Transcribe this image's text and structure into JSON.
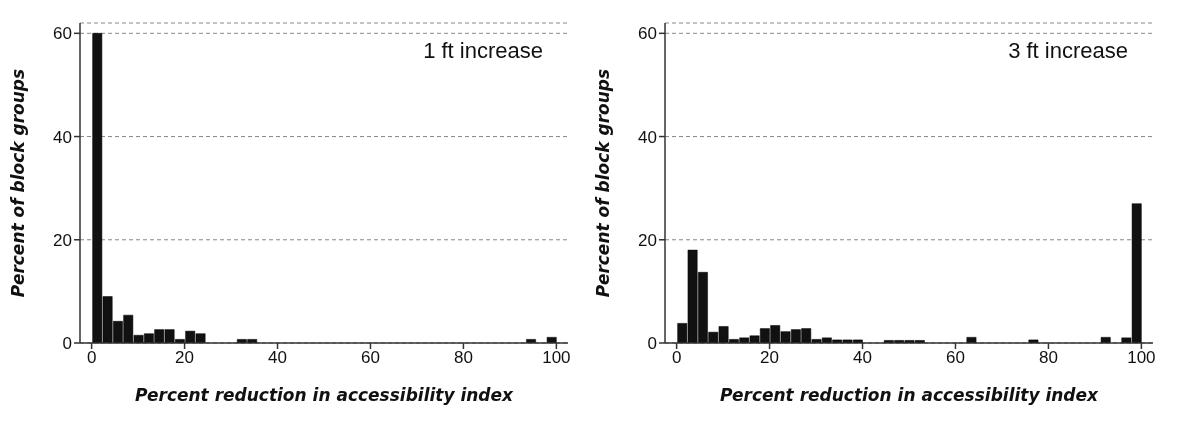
{
  "chart_data": [
    {
      "type": "histogram",
      "xlabel": "Percent reduction in accessibility index",
      "ylabel": "Percent of block groups",
      "annotations": [
        "1 ft increase"
      ],
      "bins": [
        0,
        2.222,
        4.444,
        6.667,
        8.889,
        11.111,
        13.333,
        15.556,
        17.778,
        20,
        22.222,
        24.444,
        26.667,
        28.889,
        31.111,
        33.333,
        35.556,
        37.778,
        40,
        42.222,
        44.444,
        46.667,
        48.889,
        51.111,
        53.333,
        55.556,
        57.778,
        60,
        62.222,
        64.444,
        66.667,
        68.889,
        71.111,
        73.333,
        75.556,
        77.778,
        80,
        82.222,
        84.444,
        86.667,
        88.889,
        91.111,
        93.333,
        95.556,
        97.778,
        100
      ],
      "values": [
        60,
        9,
        4.2,
        5.4,
        1.5,
        1.8,
        2.6,
        2.6,
        0.7,
        2.3,
        1.8,
        0,
        0,
        0,
        0.7,
        0.7,
        0,
        0,
        0,
        0,
        0,
        0,
        0,
        0,
        0,
        0,
        0,
        0,
        0,
        0,
        0,
        0,
        0,
        0,
        0,
        0,
        0,
        0,
        0,
        0,
        0,
        0,
        0.7,
        0,
        1.1
      ],
      "color": "#111111",
      "xlim": [
        -2.5,
        102.5
      ],
      "xticks": [
        0,
        20,
        40,
        60,
        80,
        100
      ],
      "ylim": [
        0,
        62
      ],
      "yticks": [
        0,
        20,
        40,
        60
      ],
      "grid": "y"
    },
    {
      "type": "histogram",
      "xlabel": "Percent reduction in accessibility index",
      "ylabel": "Percent of block groups",
      "annotations": [
        "3 ft increase"
      ],
      "bins": [
        0,
        2.222,
        4.444,
        6.667,
        8.889,
        11.111,
        13.333,
        15.556,
        17.778,
        20,
        22.222,
        24.444,
        26.667,
        28.889,
        31.111,
        33.333,
        35.556,
        37.778,
        40,
        42.222,
        44.444,
        46.667,
        48.889,
        51.111,
        53.333,
        55.556,
        57.778,
        60,
        62.222,
        64.444,
        66.667,
        68.889,
        71.111,
        73.333,
        75.556,
        77.778,
        80,
        82.222,
        84.444,
        86.667,
        88.889,
        91.111,
        93.333,
        95.556,
        97.778,
        100
      ],
      "values": [
        3.8,
        18,
        13.7,
        2.1,
        3.2,
        0.7,
        1,
        1.4,
        2.8,
        3.4,
        2.2,
        2.6,
        2.8,
        0.7,
        1,
        0.6,
        0.6,
        0.6,
        0,
        0,
        0.5,
        0.5,
        0.5,
        0.5,
        0,
        0,
        0,
        0,
        1.1,
        0,
        0,
        0,
        0,
        0,
        0.6,
        0,
        0,
        0,
        0,
        0,
        0,
        1.1,
        0,
        1,
        27
      ],
      "color": "#111111",
      "xlim": [
        -2.5,
        102.5
      ],
      "xticks": [
        0,
        20,
        40,
        60,
        80,
        100
      ],
      "ylim": [
        0,
        62
      ],
      "yticks": [
        0,
        20,
        40,
        60
      ],
      "grid": "y"
    }
  ]
}
